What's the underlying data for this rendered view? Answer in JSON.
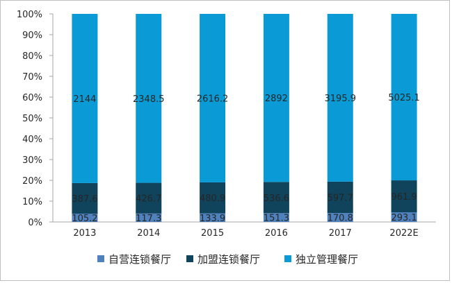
{
  "chart_data": {
    "type": "bar",
    "stacked": "percent",
    "categories": [
      "2013",
      "2014",
      "2015",
      "2016",
      "2017",
      "2022E"
    ],
    "series": [
      {
        "name": "自营连锁餐厅",
        "color": "#4f81bd",
        "values": [
          105.2,
          117.3,
          133.9,
          151.3,
          170.8,
          293.1
        ]
      },
      {
        "name": "加盟连锁餐厅",
        "color": "#10435c",
        "values": [
          387.6,
          426.7,
          480.9,
          536.6,
          597.7,
          961.9
        ]
      },
      {
        "name": "独立管理餐厅",
        "color": "#0a9bd6",
        "values": [
          2144,
          2348.5,
          2616.2,
          2892,
          3195.9,
          5025.1
        ]
      }
    ],
    "data_labels": [
      [
        "105.2",
        "117.3",
        "133.9",
        "151.3",
        "170.8",
        "293.1"
      ],
      [
        "387.6",
        "426.7",
        "480.9",
        "536.6",
        "597.7",
        "961.9"
      ],
      [
        "2144",
        "2348.5",
        "2616.2",
        "2892",
        "3195.9",
        "5025.1"
      ]
    ],
    "y_ticks": [
      "0%",
      "10%",
      "20%",
      "30%",
      "40%",
      "50%",
      "60%",
      "70%",
      "80%",
      "90%",
      "100%"
    ],
    "ylim": [
      0,
      100
    ],
    "grid": false,
    "legend_position": "bottom"
  }
}
